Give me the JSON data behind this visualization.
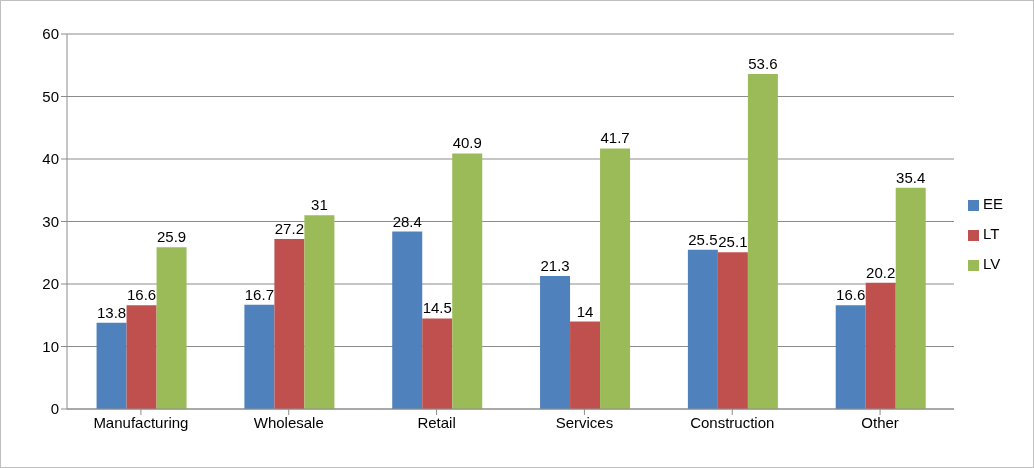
{
  "chart_data": {
    "type": "bar",
    "categories": [
      "Manufacturing",
      "Wholesale",
      "Retail",
      "Services",
      "Construction",
      "Other"
    ],
    "series": [
      {
        "name": "EE",
        "color": "#4f81bd",
        "values": [
          13.8,
          16.7,
          28.4,
          21.3,
          25.5,
          16.6
        ]
      },
      {
        "name": "LT",
        "color": "#c0504d",
        "values": [
          16.6,
          27.2,
          14.5,
          14,
          25.1,
          20.2
        ]
      },
      {
        "name": "LV",
        "color": "#9bbb59",
        "values": [
          25.9,
          31,
          40.9,
          41.7,
          53.6,
          35.4
        ]
      }
    ],
    "ylim": [
      0,
      60
    ],
    "yticks": [
      0,
      10,
      20,
      30,
      40,
      50,
      60
    ],
    "grid": "y",
    "legend": "right",
    "data_labels": true
  }
}
